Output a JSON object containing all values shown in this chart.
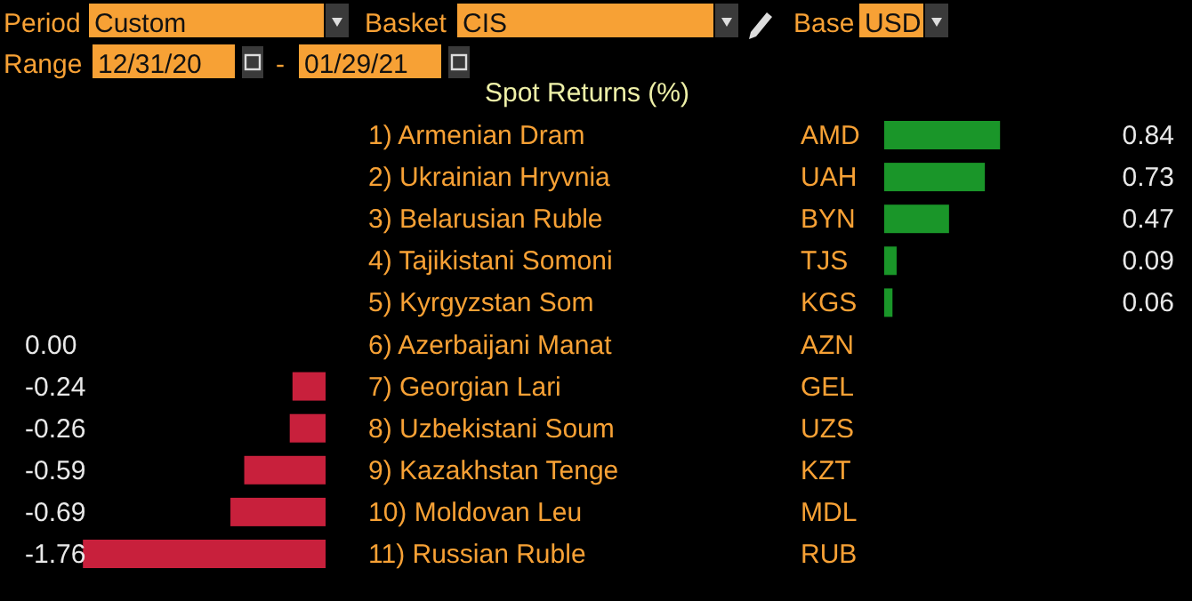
{
  "chart_data": [
    {
      "type": "bar",
      "orientation": "horizontal",
      "title": "Spot Returns (%)",
      "color": "#1a9629",
      "categories": [
        "1) Armenian Dram",
        "2) Ukrainian Hryvnia",
        "3) Belarusian Ruble",
        "4) Tajikistani Somoni",
        "5) Kyrgyzstan Som"
      ],
      "values": [
        0.84,
        0.73,
        0.47,
        0.09,
        0.06
      ],
      "value_labels": [
        "0.84",
        "0.73",
        "0.47",
        "0.09",
        "0.06"
      ],
      "annotations": [
        "Period",
        "Custom",
        "Basket",
        "CIS",
        "Base",
        "USD",
        "Range",
        "12/31/20",
        "-",
        "01/29/21",
        "AMD",
        "UAH",
        "BYN",
        "TJS",
        "KGS"
      ]
    },
    {
      "type": "bar",
      "orientation": "horizontal",
      "color": "#c8203c",
      "categories": [
        "6) Azerbaijani Manat",
        "7) Georgian Lari",
        "8) Uzbekistani Soum",
        "9) Kazakhstan Tenge",
        "10) Moldovan Leu",
        "11) Russian Ruble"
      ],
      "values": [
        0.0,
        -0.24,
        -0.26,
        -0.59,
        -0.69,
        -1.76
      ],
      "value_labels": [
        "0.00",
        "-0.24",
        "-0.26",
        "-0.59",
        "-0.69",
        "-1.76"
      ],
      "annotations": [
        "AZN",
        "GEL",
        "UZS",
        "KZT",
        "MDL",
        "RUB"
      ]
    }
  ]
}
